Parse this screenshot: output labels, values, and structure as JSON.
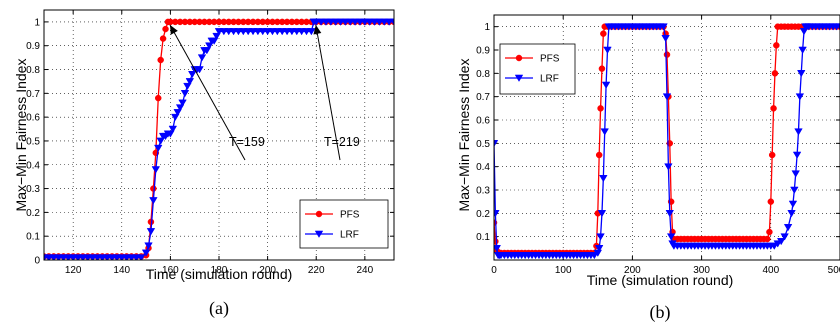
{
  "chart_data": [
    {
      "type": "line",
      "caption": "(a)",
      "xlabel": "Time (simulation round)",
      "ylabel": "Max−Min Fairness Index",
      "xlim": [
        108,
        252
      ],
      "ylim": [
        0,
        1.05
      ],
      "xticks": [
        120,
        140,
        160,
        180,
        200,
        220,
        240
      ],
      "yticks": [
        0,
        0.1,
        0.2,
        0.3,
        0.4,
        0.5,
        0.6,
        0.7,
        0.8,
        0.9,
        1
      ],
      "ytick_labels": [
        "0",
        "0.1",
        "0.2",
        "0.3",
        "0.4",
        "0.5",
        "0.6",
        "0.7",
        "0.8",
        "0.9",
        "1"
      ],
      "grid": true,
      "legend_position": "lower-right",
      "annotations": [
        {
          "text": "T=159",
          "x": 159,
          "y": 1.0
        },
        {
          "text": "T=219",
          "x": 219,
          "y": 1.0
        }
      ],
      "series": [
        {
          "name": "PFS",
          "color": "#ff0000",
          "marker": "circle",
          "x": [
            108,
            110,
            112,
            114,
            116,
            118,
            120,
            122,
            124,
            126,
            128,
            130,
            132,
            134,
            136,
            138,
            140,
            142,
            144,
            146,
            148,
            150,
            151,
            152,
            153,
            154,
            155,
            156,
            157,
            158,
            159,
            160,
            162,
            164,
            166,
            168,
            170,
            172,
            174,
            176,
            178,
            180,
            182,
            184,
            186,
            188,
            190,
            192,
            194,
            196,
            198,
            200,
            202,
            204,
            206,
            208,
            210,
            212,
            214,
            216,
            218,
            220,
            222,
            224,
            226,
            228,
            230,
            232,
            234,
            236,
            238,
            240,
            242,
            244,
            246,
            248,
            250,
            252
          ],
          "y": [
            0.015,
            0.015,
            0.015,
            0.015,
            0.015,
            0.015,
            0.015,
            0.015,
            0.015,
            0.015,
            0.015,
            0.015,
            0.015,
            0.015,
            0.015,
            0.015,
            0.015,
            0.015,
            0.015,
            0.015,
            0.015,
            0.02,
            0.05,
            0.16,
            0.3,
            0.45,
            0.68,
            0.84,
            0.93,
            0.97,
            1,
            1,
            1,
            1,
            1,
            1,
            1,
            1,
            1,
            1,
            1,
            1,
            1,
            1,
            1,
            1,
            1,
            1,
            1,
            1,
            1,
            1,
            1,
            1,
            1,
            1,
            1,
            1,
            1,
            1,
            1,
            1,
            1,
            1,
            1,
            1,
            1,
            1,
            1,
            1,
            1,
            1,
            1,
            1,
            1,
            1,
            1,
            1
          ]
        },
        {
          "name": "LRF",
          "color": "#0000ff",
          "marker": "triangle-down",
          "x": [
            108,
            110,
            112,
            114,
            116,
            118,
            120,
            122,
            124,
            126,
            128,
            130,
            132,
            134,
            136,
            138,
            140,
            142,
            144,
            146,
            148,
            150,
            151,
            152,
            153,
            154,
            155,
            156,
            157,
            158,
            159,
            160,
            161,
            162,
            163,
            164,
            165,
            166,
            167,
            168,
            169,
            170,
            171,
            172,
            173,
            174,
            175,
            176,
            177,
            178,
            179,
            180,
            182,
            184,
            186,
            188,
            190,
            192,
            194,
            196,
            198,
            200,
            202,
            204,
            206,
            208,
            210,
            212,
            214,
            216,
            218,
            219,
            220,
            222,
            224,
            226,
            228,
            230,
            232,
            234,
            236,
            238,
            240,
            242,
            244,
            246,
            248,
            250,
            252
          ],
          "y": [
            0.01,
            0.01,
            0.01,
            0.01,
            0.01,
            0.01,
            0.01,
            0.01,
            0.01,
            0.01,
            0.01,
            0.01,
            0.01,
            0.01,
            0.01,
            0.01,
            0.01,
            0.01,
            0.01,
            0.01,
            0.01,
            0.03,
            0.06,
            0.12,
            0.25,
            0.38,
            0.47,
            0.5,
            0.52,
            0.52,
            0.53,
            0.53,
            0.55,
            0.6,
            0.62,
            0.64,
            0.66,
            0.7,
            0.73,
            0.75,
            0.78,
            0.8,
            0.8,
            0.8,
            0.85,
            0.88,
            0.88,
            0.9,
            0.92,
            0.92,
            0.94,
            0.96,
            0.96,
            0.96,
            0.96,
            0.96,
            0.96,
            0.96,
            0.96,
            0.96,
            0.96,
            0.96,
            0.96,
            0.96,
            0.96,
            0.96,
            0.96,
            0.96,
            0.96,
            0.96,
            0.96,
            1,
            1,
            1,
            1,
            1,
            1,
            1,
            1,
            1,
            1,
            1,
            1,
            1,
            1,
            1,
            1,
            1,
            1
          ]
        }
      ]
    },
    {
      "type": "line",
      "caption": "(b)",
      "xlabel": "Time (simulation round)",
      "ylabel": "Max−Min Fairness Index",
      "xlim": [
        0,
        500
      ],
      "ylim": [
        0,
        1.05
      ],
      "xticks": [
        0,
        100,
        200,
        300,
        400,
        500
      ],
      "yticks": [
        0.1,
        0.2,
        0.3,
        0.4,
        0.5,
        0.6,
        0.7,
        0.8,
        0.9,
        1
      ],
      "ytick_labels": [
        "0.1",
        "0.2",
        "0.3",
        "0.4",
        "0.5",
        "0.6",
        "0.7",
        "0.8",
        "0.9",
        "1"
      ],
      "grid": true,
      "legend_position": "upper-left",
      "series": [
        {
          "name": "PFS",
          "color": "#ff0000",
          "marker": "circle",
          "x": [
            0,
            2,
            4,
            6,
            8,
            10,
            15,
            20,
            25,
            30,
            35,
            40,
            45,
            50,
            55,
            60,
            65,
            70,
            75,
            80,
            85,
            90,
            95,
            100,
            105,
            110,
            115,
            120,
            125,
            130,
            135,
            140,
            145,
            148,
            150,
            152,
            154,
            156,
            158,
            160,
            165,
            170,
            175,
            180,
            185,
            190,
            195,
            200,
            205,
            210,
            215,
            220,
            225,
            230,
            235,
            240,
            245,
            248,
            250,
            252,
            254,
            256,
            258,
            260,
            265,
            270,
            275,
            280,
            285,
            290,
            295,
            300,
            305,
            310,
            315,
            320,
            325,
            330,
            335,
            340,
            345,
            350,
            355,
            360,
            365,
            370,
            375,
            380,
            385,
            390,
            395,
            398,
            400,
            402,
            404,
            406,
            408,
            410,
            415,
            420,
            425,
            430,
            435,
            440,
            445,
            450,
            455,
            460,
            465,
            470,
            475,
            480,
            485,
            490,
            495,
            500
          ],
          "y": [
            0.16,
            0.08,
            0.04,
            0.03,
            0.03,
            0.03,
            0.03,
            0.03,
            0.03,
            0.03,
            0.03,
            0.03,
            0.03,
            0.03,
            0.03,
            0.03,
            0.03,
            0.03,
            0.03,
            0.03,
            0.03,
            0.03,
            0.03,
            0.03,
            0.03,
            0.03,
            0.03,
            0.03,
            0.03,
            0.03,
            0.03,
            0.03,
            0.03,
            0.06,
            0.2,
            0.45,
            0.65,
            0.82,
            0.97,
            1,
            1,
            1,
            1,
            1,
            1,
            1,
            1,
            1,
            1,
            1,
            1,
            1,
            1,
            1,
            1,
            1,
            1,
            0.97,
            0.88,
            0.7,
            0.5,
            0.25,
            0.12,
            0.09,
            0.09,
            0.09,
            0.09,
            0.09,
            0.09,
            0.09,
            0.09,
            0.09,
            0.09,
            0.09,
            0.09,
            0.09,
            0.09,
            0.09,
            0.09,
            0.09,
            0.09,
            0.09,
            0.09,
            0.09,
            0.09,
            0.09,
            0.09,
            0.09,
            0.09,
            0.09,
            0.09,
            0.12,
            0.25,
            0.45,
            0.65,
            0.8,
            0.92,
            1,
            1,
            1,
            1,
            1,
            1,
            1,
            1,
            1,
            1,
            1,
            1,
            1,
            1,
            1,
            1,
            1,
            1,
            1
          ]
        },
        {
          "name": "LRF",
          "color": "#0000ff",
          "marker": "triangle-down",
          "x": [
            0,
            2,
            4,
            6,
            8,
            10,
            15,
            20,
            25,
            30,
            35,
            40,
            45,
            50,
            55,
            60,
            65,
            70,
            75,
            80,
            85,
            90,
            95,
            100,
            105,
            110,
            115,
            120,
            125,
            130,
            135,
            140,
            145,
            150,
            152,
            154,
            156,
            158,
            160,
            162,
            164,
            166,
            170,
            175,
            180,
            185,
            190,
            195,
            200,
            205,
            210,
            215,
            220,
            225,
            230,
            235,
            240,
            245,
            248,
            250,
            252,
            254,
            256,
            258,
            260,
            265,
            270,
            275,
            280,
            285,
            290,
            295,
            300,
            305,
            310,
            315,
            320,
            325,
            330,
            335,
            340,
            345,
            350,
            355,
            360,
            365,
            370,
            375,
            380,
            385,
            390,
            395,
            400,
            405,
            410,
            415,
            420,
            425,
            430,
            432,
            434,
            436,
            438,
            440,
            442,
            444,
            446,
            448,
            450,
            452,
            455,
            460,
            465,
            470,
            475,
            480,
            485,
            490,
            495,
            500
          ],
          "y": [
            0.5,
            0.2,
            0.05,
            0.02,
            0.02,
            0.02,
            0.02,
            0.02,
            0.02,
            0.02,
            0.02,
            0.02,
            0.02,
            0.02,
            0.02,
            0.02,
            0.02,
            0.02,
            0.02,
            0.02,
            0.02,
            0.02,
            0.02,
            0.02,
            0.02,
            0.02,
            0.02,
            0.02,
            0.02,
            0.02,
            0.02,
            0.02,
            0.02,
            0.03,
            0.05,
            0.1,
            0.2,
            0.35,
            0.55,
            0.75,
            0.9,
            1,
            1,
            1,
            1,
            1,
            1,
            1,
            1,
            1,
            1,
            1,
            1,
            1,
            1,
            1,
            1,
            1,
            0.95,
            0.7,
            0.4,
            0.2,
            0.1,
            0.07,
            0.06,
            0.06,
            0.06,
            0.06,
            0.06,
            0.06,
            0.06,
            0.06,
            0.06,
            0.06,
            0.06,
            0.06,
            0.06,
            0.06,
            0.06,
            0.06,
            0.06,
            0.06,
            0.06,
            0.06,
            0.06,
            0.06,
            0.06,
            0.06,
            0.06,
            0.06,
            0.06,
            0.06,
            0.06,
            0.06,
            0.07,
            0.08,
            0.1,
            0.14,
            0.2,
            0.24,
            0.3,
            0.37,
            0.45,
            0.55,
            0.7,
            0.8,
            0.9,
            0.98,
            1,
            1,
            1,
            1,
            1,
            1,
            1,
            1,
            1,
            1,
            1,
            1
          ]
        }
      ]
    }
  ]
}
